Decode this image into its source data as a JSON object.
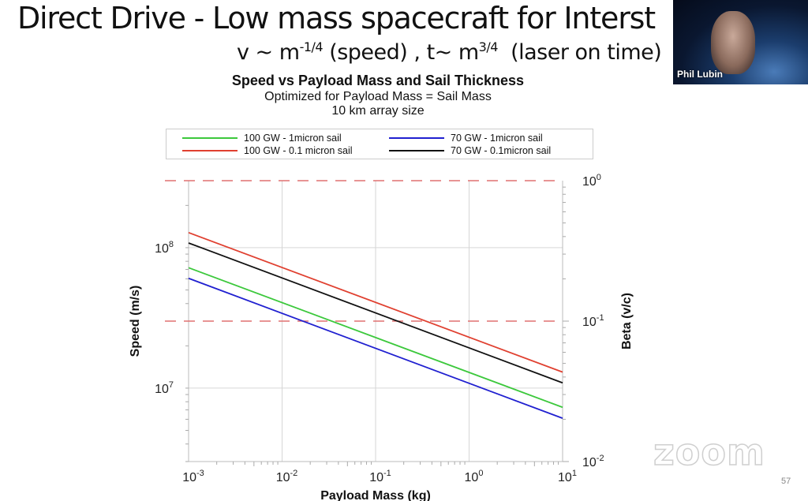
{
  "slide": {
    "title": "Direct Drive - Low mass spacecraft for Interst",
    "subtitle_v": "v ~ m",
    "subtitle_v_exp": "-1/4",
    "subtitle_v_rest": " (speed) , t~ m",
    "subtitle_t_exp": "3/4",
    "subtitle_t_rest": "  (laser on time)",
    "page_number": "57"
  },
  "video": {
    "participant_name": "Phil Lubin"
  },
  "watermark": "zoom",
  "chart_data": {
    "type": "line",
    "title": "Speed vs Payload Mass and Sail Thickness",
    "subtitle_lines": [
      "Optimized for Payload Mass = Sail Mass",
      "10 km array size"
    ],
    "xlabel": "Payload Mass (kg)",
    "ylabel": "Speed (m/s)",
    "y2label": "Beta (v/c)",
    "xscale": "log",
    "yscale": "log",
    "y2scale": "log",
    "xlim": [
      0.001,
      10
    ],
    "ylim": [
      3000000.0,
      300000000.0
    ],
    "y2lim": [
      0.01,
      1
    ],
    "grid": true,
    "legend_position": "top",
    "x_ticks": [
      {
        "base": "10",
        "exp": "-3"
      },
      {
        "base": "10",
        "exp": "-2"
      },
      {
        "base": "10",
        "exp": "-1"
      },
      {
        "base": "10",
        "exp": "0"
      },
      {
        "base": "10",
        "exp": "1"
      }
    ],
    "y_ticks": [
      {
        "value": 100000000.0,
        "base": "10",
        "exp": "8"
      },
      {
        "value": 10000000.0,
        "base": "10",
        "exp": "7"
      }
    ],
    "y2_ticks": [
      {
        "value": 1,
        "base": "10",
        "exp": "0"
      },
      {
        "value": 0.1,
        "base": "10",
        "exp": "-1"
      },
      {
        "value": 0.01,
        "base": "10",
        "exp": "-2"
      }
    ],
    "reference_lines": [
      {
        "beta": 1,
        "speed": 300000000.0,
        "color": "#e07070",
        "style": "dashed"
      },
      {
        "beta": 0.1,
        "speed": 30000000.0,
        "color": "#e07070",
        "style": "dashed"
      }
    ],
    "series": [
      {
        "name": "100 GW - 1micron sail",
        "color": "#3cc83c",
        "x": [
          0.001,
          10
        ],
        "y": [
          72000000.0,
          7300000.0
        ]
      },
      {
        "name": "70 GW - 1micron sail",
        "color": "#2020d0",
        "x": [
          0.001,
          10
        ],
        "y": [
          60500000.0,
          6100000.0
        ]
      },
      {
        "name": "100 GW - 0.1 micron sail",
        "color": "#e04030",
        "x": [
          0.001,
          10
        ],
        "y": [
          128000000.0,
          13000000.0
        ]
      },
      {
        "name": "70 GW - 0.1micron sail",
        "color": "#111111",
        "x": [
          0.001,
          10
        ],
        "y": [
          108000000.0,
          10900000.0
        ]
      }
    ]
  }
}
